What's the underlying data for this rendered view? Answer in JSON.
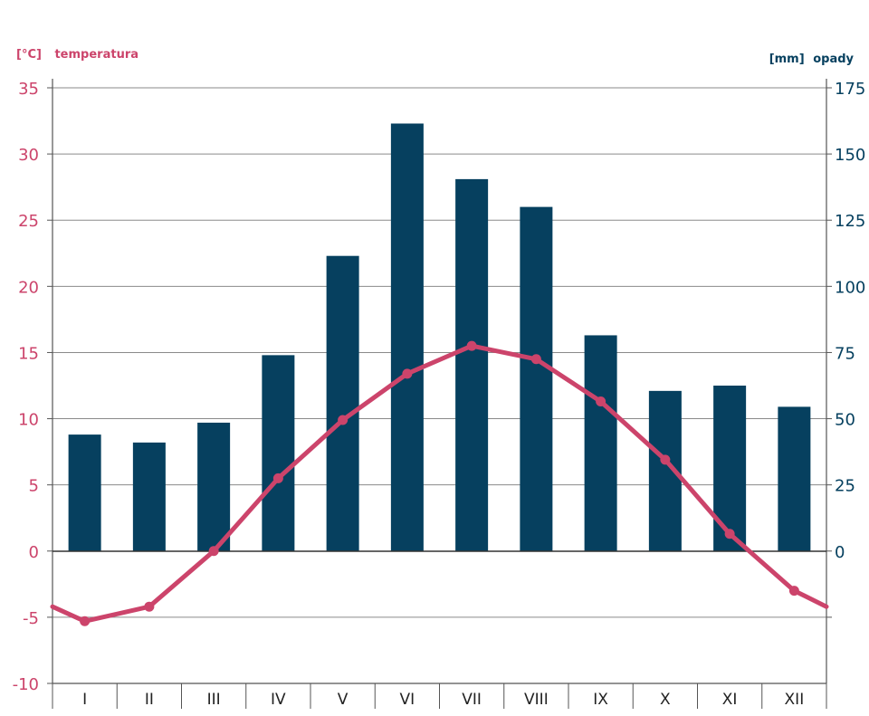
{
  "chart_data": {
    "type": "bar+line",
    "title": "",
    "categories": [
      "I",
      "II",
      "III",
      "IV",
      "V",
      "VI",
      "VII",
      "VIII",
      "IX",
      "X",
      "XI",
      "XII"
    ],
    "left_axis": {
      "unit": "[°C]",
      "label": "temperatura",
      "range": [
        -10,
        35
      ],
      "ticks": [
        35,
        30,
        25,
        20,
        15,
        10,
        5,
        0,
        -5,
        -10
      ],
      "tick_labels": [
        "35",
        "30",
        "25",
        "20",
        "15",
        "10",
        "5",
        "0",
        "-5",
        "-10"
      ]
    },
    "right_axis": {
      "unit": "[mm]",
      "label": "opady",
      "range": [
        -50,
        175
      ],
      "ticks": [
        175,
        150,
        125,
        100,
        75,
        50,
        25,
        0
      ],
      "tick_labels": [
        "175",
        "150",
        "125",
        "100",
        "75",
        "50",
        "25",
        "0"
      ]
    },
    "series": [
      {
        "name": "opady",
        "type": "bar",
        "axis": "right",
        "color": "#06405f",
        "values": [
          44,
          41,
          48.5,
          74,
          111.5,
          161.5,
          140.5,
          130,
          81.5,
          60.5,
          62.5,
          54.5
        ]
      },
      {
        "name": "temperatura",
        "type": "line",
        "axis": "left",
        "color": "#cc446b",
        "values": [
          -5.3,
          -4.2,
          0,
          5.5,
          9.9,
          13.4,
          15.5,
          14.5,
          11.3,
          6.9,
          1.3,
          -3.0
        ],
        "edge_start": -4.2,
        "edge_end": -4.2
      }
    ]
  }
}
